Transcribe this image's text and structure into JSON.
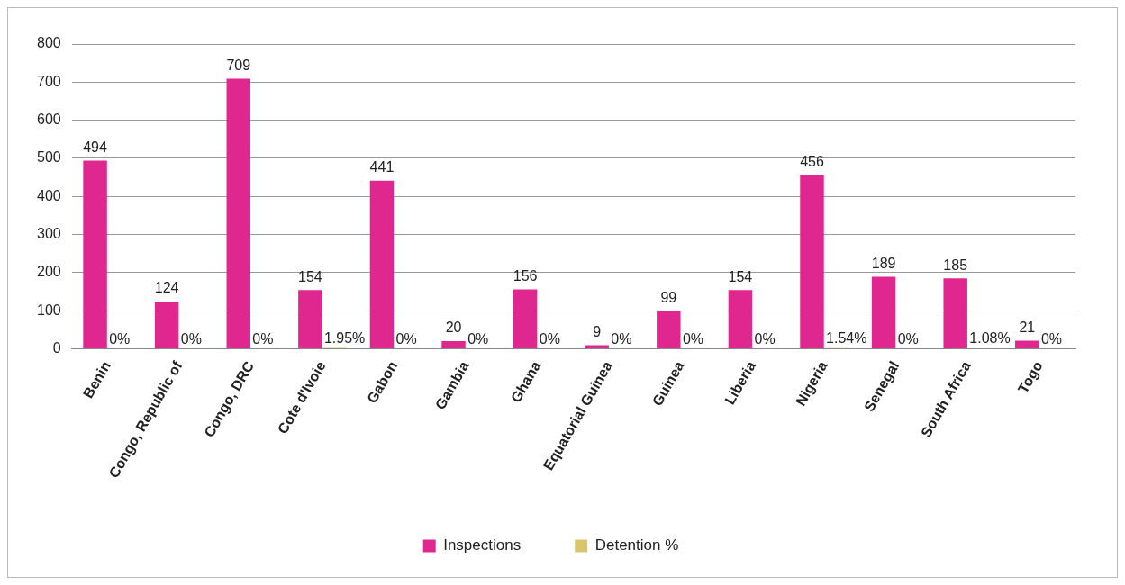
{
  "chart_data": {
    "type": "bar",
    "categories": [
      "Benin",
      "Congo, Republic of",
      "Congo, DRC",
      "Cote d'Ivoie",
      "Gabon",
      "Gambia",
      "Ghana",
      "Equatorial Guinea",
      "Guinea",
      "Liberia",
      "Nigeria",
      "Senegal",
      "South Africa",
      "Togo"
    ],
    "series": [
      {
        "name": "Inspections",
        "color": "#e0278f",
        "values": [
          494,
          124,
          709,
          154,
          441,
          20,
          156,
          9,
          99,
          154,
          456,
          189,
          185,
          21
        ],
        "value_labels": [
          "494",
          "124",
          "709",
          "154",
          "441",
          "20",
          "156",
          "9",
          "99",
          "154",
          "456",
          "189",
          "185",
          "21"
        ]
      },
      {
        "name": "Detention %",
        "color": "#d8c66e",
        "values": [
          0,
          0,
          0,
          1.95,
          0,
          0,
          0,
          0,
          0,
          0,
          1.54,
          0,
          1.08,
          0
        ],
        "value_labels": [
          "0%",
          "0%",
          "0%",
          "1.95%",
          "0%",
          "0%",
          "0%",
          "0%",
          "0%",
          "0%",
          "1.54%",
          "0%",
          "1.08%",
          "0%"
        ]
      }
    ],
    "ylim": [
      0,
      800
    ],
    "yticks": [
      0,
      100,
      200,
      300,
      400,
      500,
      600,
      700,
      800
    ],
    "grid": "y",
    "legend": "bottom"
  }
}
